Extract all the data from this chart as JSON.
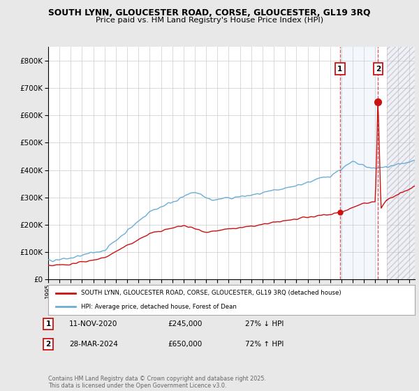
{
  "title1": "SOUTH LYNN, GLOUCESTER ROAD, CORSE, GLOUCESTER, GL19 3RQ",
  "title2": "Price paid vs. HM Land Registry's House Price Index (HPI)",
  "ylim": [
    0,
    850000
  ],
  "yticks": [
    0,
    100000,
    200000,
    300000,
    400000,
    500000,
    600000,
    700000,
    800000
  ],
  "xlim": [
    1995.0,
    2027.5
  ],
  "bg_color": "#e8e8e8",
  "plot_bg": "#ffffff",
  "hpi_color": "#6aaed6",
  "price_color": "#cc1111",
  "sale1_date": 2020.87,
  "sale1_price": 245000,
  "sale2_date": 2024.24,
  "sale2_price": 650000,
  "legend_line1": "SOUTH LYNN, GLOUCESTER ROAD, CORSE, GLOUCESTER, GL19 3RQ (detached house)",
  "legend_line2": "HPI: Average price, detached house, Forest of Dean",
  "table_row1": [
    "1",
    "11-NOV-2020",
    "£245,000",
    "27% ↓ HPI"
  ],
  "table_row2": [
    "2",
    "28-MAR-2024",
    "£650,000",
    "72% ↑ HPI"
  ],
  "footnote": "Contains HM Land Registry data © Crown copyright and database right 2025.\nThis data is licensed under the Open Government Licence v3.0.",
  "future_start": 2025.0
}
